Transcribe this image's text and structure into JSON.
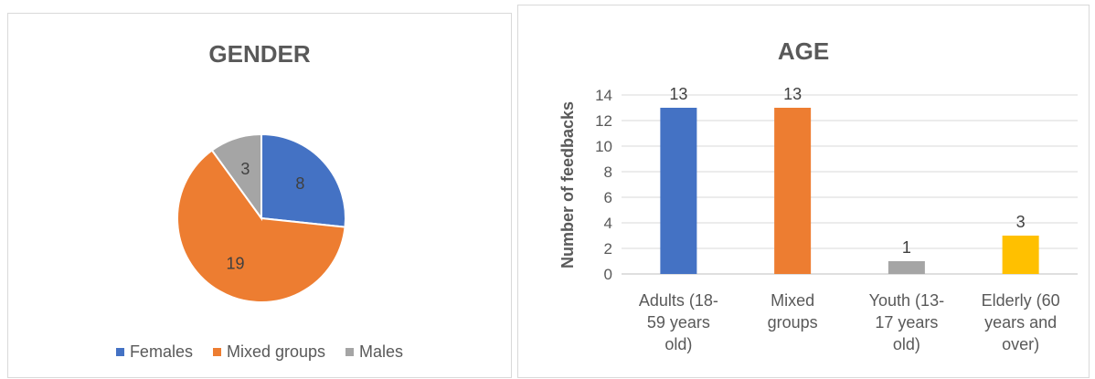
{
  "chart_data": [
    {
      "type": "pie",
      "title": "GENDER",
      "categories": [
        "Females",
        "Mixed groups",
        "Males"
      ],
      "values": [
        8,
        19,
        3
      ],
      "colors": [
        "#4472C4",
        "#ED7D31",
        "#A5A5A5"
      ],
      "legend": "bottom"
    },
    {
      "type": "bar",
      "title": "AGE",
      "ylabel": "Number of feedbacks",
      "xlabel": "",
      "categories": [
        "Adults (18-\n59 years\nold)",
        "Mixed\ngroups",
        "Youth (13-\n17 years\nold)",
        "Elderly (60\nyears and\nover)"
      ],
      "values": [
        13,
        13,
        1,
        3
      ],
      "colors": [
        "#4472C4",
        "#ED7D31",
        "#A5A5A5",
        "#FFC000"
      ],
      "ylim": [
        0,
        14
      ],
      "yticks": [
        0,
        2,
        4,
        6,
        8,
        10,
        12,
        14
      ],
      "grid": true
    }
  ]
}
